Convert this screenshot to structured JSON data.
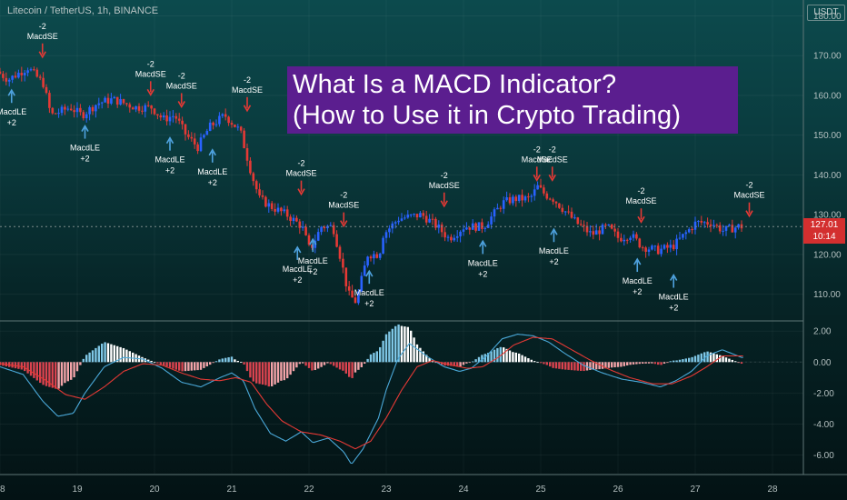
{
  "header": {
    "symbol": "Litecoin / TetherUS, 1h, BINANCE",
    "currency": "USDT"
  },
  "title": {
    "line1": "What Is a MACD Indicator?",
    "line2": "(How to Use it in Crypto Trading)"
  },
  "price_tag": {
    "price": "127.01",
    "countdown": "10:14"
  },
  "colors": {
    "bull_candle": "#2962ff",
    "bear_candle": "#e53935",
    "short_signal": "#e53935",
    "long_signal": "#4fa3e0",
    "macd_line": "#4aa8d8",
    "signal_line": "#e53935",
    "hist_up": "#7fc7e6",
    "hist_down": "#d9434f",
    "hist_up_fading": "#ffffff",
    "hist_down_fading": "#f2a3a8",
    "banner": "#5b1e8f",
    "price_tag": "#d32f2f"
  },
  "chart_data": [
    {
      "type": "candlestick",
      "title": "Litecoin / TetherUS, 1h, BINANCE",
      "y_ticks": [
        "180.00",
        "170.00",
        "160.00",
        "150.00",
        "140.00",
        "130.00",
        "120.00",
        "110.00"
      ],
      "y_tick_values": [
        180,
        170,
        160,
        150,
        140,
        130,
        120,
        110
      ],
      "ylim": [
        103.5,
        184
      ],
      "x_ticks": [
        "18",
        "19",
        "20",
        "21",
        "22",
        "23",
        "24",
        "25",
        "26",
        "27",
        "28"
      ],
      "x_tick_values": [
        18,
        19,
        20,
        21,
        22,
        23,
        24,
        25,
        26,
        27,
        28
      ],
      "xlim": [
        18.0,
        28.4
      ],
      "last_price": 127.01,
      "price_anchors": [
        [
          18.0,
          166
        ],
        [
          18.15,
          164
        ],
        [
          18.4,
          167
        ],
        [
          18.6,
          163
        ],
        [
          18.7,
          155
        ],
        [
          18.95,
          157
        ],
        [
          19.1,
          155
        ],
        [
          19.3,
          158
        ],
        [
          19.5,
          159
        ],
        [
          19.8,
          157
        ],
        [
          20.0,
          157
        ],
        [
          20.15,
          154
        ],
        [
          20.3,
          155
        ],
        [
          20.45,
          150
        ],
        [
          20.6,
          147
        ],
        [
          20.75,
          152
        ],
        [
          20.95,
          155
        ],
        [
          21.15,
          151
        ],
        [
          21.3,
          140
        ],
        [
          21.4,
          134
        ],
        [
          21.55,
          132
        ],
        [
          21.75,
          130
        ],
        [
          21.95,
          127
        ],
        [
          22.05,
          121
        ],
        [
          22.2,
          127
        ],
        [
          22.35,
          127
        ],
        [
          22.45,
          119
        ],
        [
          22.55,
          110
        ],
        [
          22.65,
          108
        ],
        [
          22.8,
          120
        ],
        [
          22.95,
          120
        ],
        [
          23.0,
          125
        ],
        [
          23.2,
          129
        ],
        [
          23.5,
          130
        ],
        [
          23.7,
          127
        ],
        [
          23.85,
          124
        ],
        [
          24.05,
          127
        ],
        [
          24.3,
          127
        ],
        [
          24.55,
          133
        ],
        [
          24.7,
          134
        ],
        [
          24.9,
          134
        ],
        [
          25.0,
          137
        ],
        [
          25.1,
          135
        ],
        [
          25.2,
          134
        ],
        [
          25.35,
          131
        ],
        [
          25.5,
          128
        ],
        [
          25.7,
          125
        ],
        [
          25.9,
          127
        ],
        [
          26.05,
          124
        ],
        [
          26.2,
          125
        ],
        [
          26.35,
          122
        ],
        [
          26.55,
          121
        ],
        [
          26.75,
          122
        ],
        [
          26.9,
          125
        ],
        [
          27.05,
          128
        ],
        [
          27.25,
          128
        ],
        [
          27.4,
          126
        ],
        [
          27.6,
          127.01
        ]
      ],
      "signals": [
        {
          "type": "short",
          "x": 18.55,
          "y": 168.5,
          "label": "MacdSE",
          "qty": "-2"
        },
        {
          "type": "long",
          "x": 18.15,
          "y": 162.0,
          "label": "MacdLE",
          "qty": "+2"
        },
        {
          "type": "long",
          "x": 19.1,
          "y": 153.0,
          "label": "MacdLE",
          "qty": "+2"
        },
        {
          "type": "short",
          "x": 19.95,
          "y": 159.0,
          "label": "MacdSE",
          "qty": "-2"
        },
        {
          "type": "short",
          "x": 20.35,
          "y": 156.0,
          "label": "MacdSE",
          "qty": "-2"
        },
        {
          "type": "long",
          "x": 20.2,
          "y": 150.0,
          "label": "MacdLE",
          "qty": "+2"
        },
        {
          "type": "long",
          "x": 20.75,
          "y": 147.0,
          "label": "MacdLE",
          "qty": "+2"
        },
        {
          "type": "short",
          "x": 21.2,
          "y": 155.0,
          "label": "MacdSE",
          "qty": "-2"
        },
        {
          "type": "short",
          "x": 21.9,
          "y": 134.0,
          "label": "MacdSE",
          "qty": "-2"
        },
        {
          "type": "long",
          "x": 21.85,
          "y": 122.5,
          "label": "MacdLE",
          "qty": "+2"
        },
        {
          "type": "long",
          "x": 22.05,
          "y": 124.5,
          "label": "MacdLE",
          "qty": "+2"
        },
        {
          "type": "short",
          "x": 22.45,
          "y": 126.0,
          "label": "MacdSE",
          "qty": "-2"
        },
        {
          "type": "long",
          "x": 22.78,
          "y": 116.5,
          "label": "MacdLE",
          "qty": "+2"
        },
        {
          "type": "short",
          "x": 23.75,
          "y": 131.0,
          "label": "MacdSE",
          "qty": "-2"
        },
        {
          "type": "long",
          "x": 24.25,
          "y": 124.0,
          "label": "MacdLE",
          "qty": "+2"
        },
        {
          "type": "short",
          "x": 24.95,
          "y": 137.5,
          "label": "MacdSE",
          "qty": "-2"
        },
        {
          "type": "short",
          "x": 25.15,
          "y": 137.5,
          "label": "MacdSE",
          "qty": "-2"
        },
        {
          "type": "long",
          "x": 25.17,
          "y": 127.0,
          "label": "MacdLE",
          "qty": "+2"
        },
        {
          "type": "short",
          "x": 26.3,
          "y": 127.0,
          "label": "MacdSE",
          "qty": "-2"
        },
        {
          "type": "long",
          "x": 26.25,
          "y": 119.5,
          "label": "MacdLE",
          "qty": "+2"
        },
        {
          "type": "long",
          "x": 26.72,
          "y": 115.5,
          "label": "MacdLE",
          "qty": "+2"
        },
        {
          "type": "short",
          "x": 27.7,
          "y": 128.5,
          "label": "MacdSE",
          "qty": "-2"
        }
      ]
    },
    {
      "type": "macd",
      "y_ticks": [
        "2.00",
        "0.00",
        "-2.00",
        "-4.00",
        "-6.00"
      ],
      "y_tick_values": [
        2,
        0,
        -2,
        -4,
        -6
      ],
      "ylim": [
        -7.2,
        2.6
      ],
      "xlim": [
        18.0,
        28.4
      ],
      "macd_anchors": [
        [
          18.0,
          -0.3
        ],
        [
          18.3,
          -0.8
        ],
        [
          18.55,
          -2.5
        ],
        [
          18.75,
          -3.5
        ],
        [
          18.95,
          -3.3
        ],
        [
          19.1,
          -2.0
        ],
        [
          19.35,
          -0.3
        ],
        [
          19.6,
          0.3
        ],
        [
          19.85,
          0.2
        ],
        [
          20.1,
          -0.4
        ],
        [
          20.35,
          -1.3
        ],
        [
          20.6,
          -1.6
        ],
        [
          20.85,
          -1.0
        ],
        [
          21.0,
          -0.7
        ],
        [
          21.15,
          -1.2
        ],
        [
          21.3,
          -3.0
        ],
        [
          21.5,
          -4.6
        ],
        [
          21.7,
          -5.1
        ],
        [
          21.9,
          -4.5
        ],
        [
          22.05,
          -5.2
        ],
        [
          22.25,
          -4.9
        ],
        [
          22.45,
          -5.8
        ],
        [
          22.55,
          -6.6
        ],
        [
          22.7,
          -5.6
        ],
        [
          22.9,
          -3.6
        ],
        [
          23.0,
          -1.8
        ],
        [
          23.15,
          0.2
        ],
        [
          23.3,
          1.2
        ],
        [
          23.55,
          0.3
        ],
        [
          23.75,
          -0.3
        ],
        [
          23.95,
          -0.6
        ],
        [
          24.1,
          -0.4
        ],
        [
          24.3,
          0.4
        ],
        [
          24.5,
          1.5
        ],
        [
          24.7,
          1.8
        ],
        [
          24.9,
          1.7
        ],
        [
          25.1,
          1.3
        ],
        [
          25.3,
          0.6
        ],
        [
          25.55,
          -0.2
        ],
        [
          25.8,
          -0.7
        ],
        [
          26.05,
          -1.1
        ],
        [
          26.3,
          -1.3
        ],
        [
          26.55,
          -1.6
        ],
        [
          26.75,
          -1.2
        ],
        [
          26.95,
          -0.6
        ],
        [
          27.15,
          0.4
        ],
        [
          27.35,
          0.8
        ],
        [
          27.6,
          0.3
        ]
      ],
      "signal_anchors": [
        [
          18.0,
          -0.1
        ],
        [
          18.3,
          -0.3
        ],
        [
          18.6,
          -1.2
        ],
        [
          18.85,
          -2.1
        ],
        [
          19.1,
          -2.4
        ],
        [
          19.35,
          -1.6
        ],
        [
          19.6,
          -0.6
        ],
        [
          19.85,
          -0.1
        ],
        [
          20.1,
          -0.2
        ],
        [
          20.35,
          -0.7
        ],
        [
          20.6,
          -1.1
        ],
        [
          20.85,
          -1.2
        ],
        [
          21.05,
          -1.0
        ],
        [
          21.25,
          -1.3
        ],
        [
          21.45,
          -2.7
        ],
        [
          21.65,
          -3.8
        ],
        [
          21.9,
          -4.5
        ],
        [
          22.15,
          -4.7
        ],
        [
          22.4,
          -5.1
        ],
        [
          22.6,
          -5.6
        ],
        [
          22.8,
          -5.1
        ],
        [
          23.0,
          -3.6
        ],
        [
          23.2,
          -1.8
        ],
        [
          23.4,
          -0.3
        ],
        [
          23.6,
          0.1
        ],
        [
          23.85,
          -0.2
        ],
        [
          24.05,
          -0.4
        ],
        [
          24.25,
          -0.3
        ],
        [
          24.45,
          0.3
        ],
        [
          24.65,
          1.1
        ],
        [
          24.9,
          1.6
        ],
        [
          25.15,
          1.5
        ],
        [
          25.4,
          0.8
        ],
        [
          25.65,
          0.1
        ],
        [
          25.9,
          -0.5
        ],
        [
          26.15,
          -1.0
        ],
        [
          26.45,
          -1.4
        ],
        [
          26.7,
          -1.4
        ],
        [
          26.95,
          -0.9
        ],
        [
          27.15,
          -0.3
        ],
        [
          27.35,
          0.4
        ],
        [
          27.6,
          0.4
        ]
      ]
    }
  ]
}
